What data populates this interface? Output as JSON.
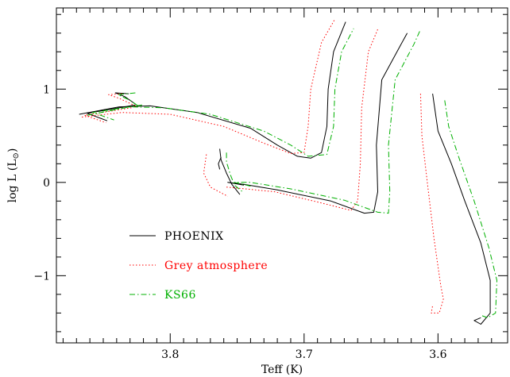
{
  "chart_data": {
    "type": "line",
    "xlabel": "Teff (K)",
    "ylabel_main": "log L (L",
    "ylabel_sub": "⊙",
    "ylabel_close": ")",
    "xlim": [
      3.885,
      3.548
    ],
    "ylim": [
      -1.72,
      1.87
    ],
    "x_ticks": [
      {
        "v": 3.8,
        "label": "3.8"
      },
      {
        "v": 3.7,
        "label": "3.7"
      },
      {
        "v": 3.6,
        "label": "3.6"
      }
    ],
    "y_ticks": [
      {
        "v": 1,
        "label": "1"
      },
      {
        "v": 0,
        "label": "0"
      },
      {
        "v": -1,
        "label": "−1"
      }
    ],
    "legend": [
      {
        "label": "PHOENIX",
        "color": "#000000",
        "dash": ""
      },
      {
        "label": "Grey atmosphere",
        "color": "#ff0000",
        "dash": "1.5,2.5"
      },
      {
        "label": "KS66",
        "color": "#00b000",
        "dash": "7,3,1.5,3"
      }
    ],
    "series": [
      {
        "name": "PHOENIX",
        "color": "#000000",
        "dash": "",
        "tracks": [
          [
            [
              3.831,
              0.95
            ],
            [
              3.841,
              0.96
            ],
            [
              3.834,
              0.92
            ],
            [
              3.826,
              0.84
            ]
          ],
          [
            [
              3.826,
              0.83
            ],
            [
              3.862,
              0.74
            ],
            [
              3.847,
              0.66
            ]
          ],
          [
            [
              3.868,
              0.73
            ],
            [
              3.838,
              0.81
            ],
            [
              3.815,
              0.82
            ],
            [
              3.78,
              0.75
            ],
            [
              3.74,
              0.58
            ],
            [
              3.72,
              0.4
            ],
            [
              3.705,
              0.28
            ],
            [
              3.695,
              0.26
            ],
            [
              3.687,
              0.32
            ],
            [
              3.683,
              0.6
            ],
            [
              3.682,
              1.0
            ],
            [
              3.678,
              1.4
            ],
            [
              3.669,
              1.72
            ]
          ],
          [
            [
              3.763,
              0.36
            ],
            [
              3.762,
              0.24
            ],
            [
              3.758,
              0.1
            ],
            [
              3.754,
              -0.02
            ],
            [
              3.748,
              -0.13
            ]
          ],
          [
            [
              3.762,
              0.27
            ],
            [
              3.764,
              0.2
            ],
            [
              3.763,
              0.14
            ]
          ],
          [
            [
              3.745,
              -0.03
            ],
            [
              3.757,
              0.0
            ],
            [
              3.745,
              -0.02
            ],
            [
              3.72,
              -0.08
            ],
            [
              3.68,
              -0.2
            ],
            [
              3.655,
              -0.33
            ],
            [
              3.648,
              -0.32
            ],
            [
              3.645,
              -0.1
            ],
            [
              3.646,
              0.4
            ],
            [
              3.642,
              1.1
            ],
            [
              3.628,
              1.47
            ],
            [
              3.623,
              1.6
            ]
          ],
          [
            [
              3.604,
              0.95
            ],
            [
              3.6,
              0.55
            ],
            [
              3.59,
              0.2
            ],
            [
              3.58,
              -0.2
            ],
            [
              3.568,
              -0.65
            ],
            [
              3.561,
              -1.05
            ],
            [
              3.561,
              -1.4
            ],
            [
              3.568,
              -1.52
            ],
            [
              3.573,
              -1.48
            ],
            [
              3.568,
              -1.45
            ]
          ]
        ]
      },
      {
        "name": "Grey atmosphere",
        "color": "#ff0000",
        "dash": "1.5,2.5",
        "tracks": [
          [
            [
              3.836,
              0.95
            ],
            [
              3.846,
              0.94
            ],
            [
              3.838,
              0.9
            ],
            [
              3.826,
              0.82
            ]
          ],
          [
            [
              3.829,
              0.8
            ],
            [
              3.864,
              0.72
            ],
            [
              3.848,
              0.64
            ]
          ],
          [
            [
              3.866,
              0.7
            ],
            [
              3.836,
              0.75
            ],
            [
              3.8,
              0.73
            ],
            [
              3.76,
              0.6
            ],
            [
              3.73,
              0.42
            ],
            [
              3.71,
              0.31
            ],
            [
              3.7,
              0.32
            ],
            [
              3.697,
              0.6
            ],
            [
              3.695,
              1.0
            ],
            [
              3.687,
              1.5
            ],
            [
              3.677,
              1.75
            ]
          ],
          [
            [
              3.773,
              0.3
            ],
            [
              3.775,
              0.1
            ],
            [
              3.77,
              -0.05
            ],
            [
              3.757,
              -0.15
            ]
          ],
          [
            [
              3.758,
              -0.05
            ],
            [
              3.722,
              -0.1
            ],
            [
              3.69,
              -0.21
            ],
            [
              3.665,
              -0.3
            ],
            [
              3.66,
              -0.2
            ],
            [
              3.658,
              0.2
            ],
            [
              3.657,
              0.8
            ],
            [
              3.652,
              1.4
            ],
            [
              3.645,
              1.64
            ]
          ],
          [
            [
              3.613,
              0.95
            ],
            [
              3.612,
              0.5
            ],
            [
              3.608,
              0.0
            ],
            [
              3.603,
              -0.6
            ],
            [
              3.598,
              -1.1
            ],
            [
              3.596,
              -1.25
            ],
            [
              3.599,
              -1.4
            ],
            [
              3.605,
              -1.4
            ],
            [
              3.604,
              -1.32
            ]
          ]
        ]
      },
      {
        "name": "KS66",
        "color": "#00b000",
        "dash": "7,3,1.5,3",
        "tracks": [
          [
            [
              3.826,
              0.96
            ],
            [
              3.839,
              0.94
            ],
            [
              3.83,
              0.88
            ],
            [
              3.824,
              0.82
            ]
          ],
          [
            [
              3.821,
              0.83
            ],
            [
              3.858,
              0.75
            ],
            [
              3.842,
              0.67
            ]
          ],
          [
            [
              3.862,
              0.72
            ],
            [
              3.83,
              0.81
            ],
            [
              3.805,
              0.8
            ],
            [
              3.77,
              0.73
            ],
            [
              3.73,
              0.55
            ],
            [
              3.71,
              0.4
            ],
            [
              3.697,
              0.28
            ],
            [
              3.683,
              0.3
            ],
            [
              3.678,
              0.6
            ],
            [
              3.677,
              1.0
            ],
            [
              3.672,
              1.4
            ],
            [
              3.663,
              1.65
            ]
          ],
          [
            [
              3.758,
              0.32
            ],
            [
              3.758,
              0.22
            ],
            [
              3.755,
              0.08
            ],
            [
              3.752,
              -0.03
            ],
            [
              3.746,
              -0.1
            ]
          ],
          [
            [
              3.74,
              -0.04
            ],
            [
              3.752,
              0.0
            ],
            [
              3.74,
              0.0
            ],
            [
              3.71,
              -0.07
            ],
            [
              3.67,
              -0.19
            ],
            [
              3.645,
              -0.32
            ],
            [
              3.637,
              -0.33
            ],
            [
              3.636,
              -0.1
            ],
            [
              3.637,
              0.4
            ],
            [
              3.632,
              1.1
            ],
            [
              3.618,
              1.48
            ],
            [
              3.613,
              1.64
            ]
          ],
          [
            [
              3.595,
              0.88
            ],
            [
              3.592,
              0.6
            ],
            [
              3.584,
              0.25
            ],
            [
              3.573,
              -0.2
            ],
            [
              3.562,
              -0.7
            ],
            [
              3.556,
              -1.05
            ],
            [
              3.557,
              -1.4
            ],
            [
              3.563,
              -1.45
            ],
            [
              3.567,
              -1.43
            ]
          ]
        ]
      }
    ]
  }
}
